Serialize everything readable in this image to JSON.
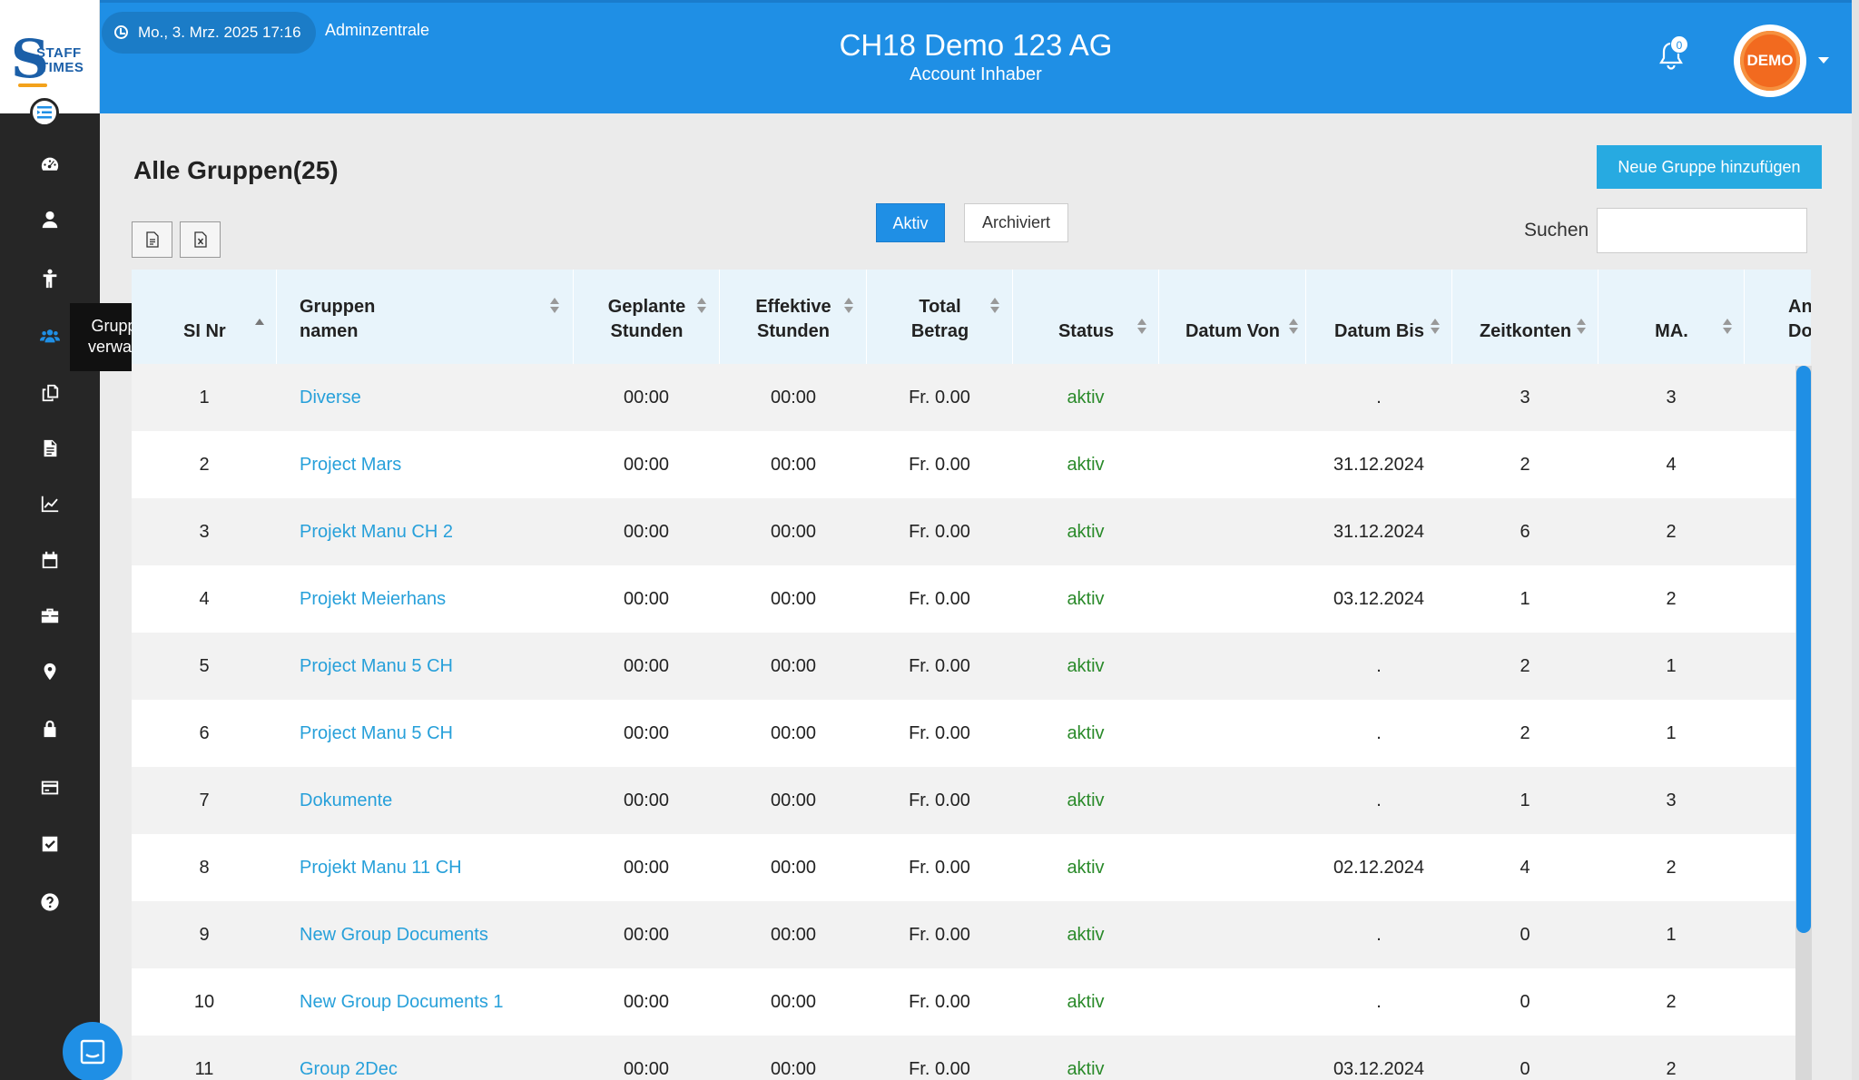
{
  "brand": {
    "logo_letter": "S",
    "logo_word_1": "STAFF",
    "logo_word_2": "TIMES"
  },
  "header": {
    "datetime": "Mo., 3. Mrz. 2025 17:16",
    "admin_link": "Adminzentrale",
    "company": "CH18 Demo 123 AG",
    "role": "Account Inhaber",
    "notification_count": "0",
    "avatar_text": "DEMO"
  },
  "sidebar": {
    "items": [
      {
        "name": "menu-toggle-icon"
      },
      {
        "name": "dashboard-icon"
      },
      {
        "name": "user-icon"
      },
      {
        "name": "person-standing-icon"
      },
      {
        "name": "users-group-icon",
        "active": true
      },
      {
        "name": "copy-documents-icon"
      },
      {
        "name": "file-text-icon"
      },
      {
        "name": "chart-line-icon"
      },
      {
        "name": "calendar-icon"
      },
      {
        "name": "briefcase-icon"
      },
      {
        "name": "map-marker-icon"
      },
      {
        "name": "lock-icon"
      },
      {
        "name": "credit-card-icon"
      },
      {
        "name": "check-square-icon"
      },
      {
        "name": "help-circle-icon"
      }
    ],
    "tooltip_line1": "Gruppen",
    "tooltip_line2": "verwalten"
  },
  "page": {
    "title": "Alle Gruppen(25)",
    "add_button": "Neue Gruppe hinzufügen",
    "filter_active": "Aktiv",
    "filter_archived": "Archiviert",
    "search_label": "Suchen",
    "search_value": ""
  },
  "table": {
    "headers": {
      "sl_nr": "SI Nr",
      "name_1": "Gruppen",
      "name_2": "namen",
      "planned_1": "Geplante",
      "planned_2": "Stunden",
      "effective_1": "Effektive",
      "effective_2": "Stunden",
      "total_1": "Total",
      "total_2": "Betrag",
      "status": "Status",
      "date_from": "Datum Von",
      "date_to": "Datum Bis",
      "accounts": "Zeitkonten",
      "ma": "MA.",
      "more_1": "An",
      "more_2": "Do"
    },
    "rows": [
      {
        "nr": "1",
        "name": "Diverse",
        "planned": "00:00",
        "effective": "00:00",
        "total": "Fr. 0.00",
        "status": "aktiv",
        "date_from": "",
        "date_to": ".",
        "accounts": "3",
        "ma": "3"
      },
      {
        "nr": "2",
        "name": "Project Mars",
        "planned": "00:00",
        "effective": "00:00",
        "total": "Fr. 0.00",
        "status": "aktiv",
        "date_from": "",
        "date_to": "31.12.2024",
        "accounts": "2",
        "ma": "4"
      },
      {
        "nr": "3",
        "name": "Projekt Manu CH 2",
        "planned": "00:00",
        "effective": "00:00",
        "total": "Fr. 0.00",
        "status": "aktiv",
        "date_from": "",
        "date_to": "31.12.2024",
        "accounts": "6",
        "ma": "2"
      },
      {
        "nr": "4",
        "name": "Projekt Meierhans",
        "planned": "00:00",
        "effective": "00:00",
        "total": "Fr. 0.00",
        "status": "aktiv",
        "date_from": "",
        "date_to": "03.12.2024",
        "accounts": "1",
        "ma": "2"
      },
      {
        "nr": "5",
        "name": "Project Manu 5 CH",
        "planned": "00:00",
        "effective": "00:00",
        "total": "Fr. 0.00",
        "status": "aktiv",
        "date_from": "",
        "date_to": ".",
        "accounts": "2",
        "ma": "1"
      },
      {
        "nr": "6",
        "name": "Project Manu 5 CH",
        "planned": "00:00",
        "effective": "00:00",
        "total": "Fr. 0.00",
        "status": "aktiv",
        "date_from": "",
        "date_to": ".",
        "accounts": "2",
        "ma": "1"
      },
      {
        "nr": "7",
        "name": "Dokumente",
        "planned": "00:00",
        "effective": "00:00",
        "total": "Fr. 0.00",
        "status": "aktiv",
        "date_from": "",
        "date_to": ".",
        "accounts": "1",
        "ma": "3"
      },
      {
        "nr": "8",
        "name": "Projekt Manu 11 CH",
        "planned": "00:00",
        "effective": "00:00",
        "total": "Fr. 0.00",
        "status": "aktiv",
        "date_from": "",
        "date_to": "02.12.2024",
        "accounts": "4",
        "ma": "2"
      },
      {
        "nr": "9",
        "name": "New Group Documents",
        "planned": "00:00",
        "effective": "00:00",
        "total": "Fr. 0.00",
        "status": "aktiv",
        "date_from": "",
        "date_to": ".",
        "accounts": "0",
        "ma": "1"
      },
      {
        "nr": "10",
        "name": "New Group Documents 1",
        "planned": "00:00",
        "effective": "00:00",
        "total": "Fr. 0.00",
        "status": "aktiv",
        "date_from": "",
        "date_to": ".",
        "accounts": "0",
        "ma": "2"
      },
      {
        "nr": "11",
        "name": "Group 2Dec",
        "planned": "00:00",
        "effective": "00:00",
        "total": "Fr. 0.00",
        "status": "aktiv",
        "date_from": "",
        "date_to": "03.12.2024",
        "accounts": "0",
        "ma": "2"
      }
    ]
  },
  "colors": {
    "primary": "#1f8fe5",
    "link": "#27a0da",
    "status_active": "#2a8a2a",
    "sidebar_bg": "#262626"
  }
}
